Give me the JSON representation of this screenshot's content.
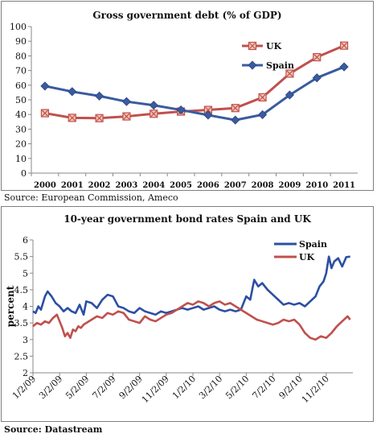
{
  "chart_data": [
    {
      "type": "line",
      "title": "Gross government debt (% of GDP)",
      "categories": [
        "2000",
        "2001",
        "2002",
        "2003",
        "2004",
        "2005",
        "2006",
        "2007",
        "2008",
        "2009",
        "2010",
        "2011"
      ],
      "ylim": [
        0,
        100
      ],
      "yticks": [
        "0",
        "10",
        "20",
        "30",
        "40",
        "50",
        "60",
        "70",
        "80",
        "90",
        "100"
      ],
      "grid": false,
      "legend": "top-right",
      "series": [
        {
          "name": "UK",
          "color": "#c0504d",
          "marker": "x-square",
          "values": [
            40.9,
            37.7,
            37.5,
            38.7,
            40.5,
            42.0,
            43.1,
            44.4,
            51.7,
            67.9,
            79.1,
            87.0
          ]
        },
        {
          "name": "Spain",
          "color": "#3a5ba0",
          "marker": "diamond",
          "values": [
            59.4,
            55.6,
            52.6,
            48.8,
            46.3,
            43.1,
            39.6,
            36.2,
            39.9,
            53.3,
            65.0,
            72.5
          ]
        }
      ]
    },
    {
      "type": "line",
      "title": "10-year government bond rates Spain and UK",
      "ylabel": "percent",
      "xticks": [
        "1/2/09",
        "3/2/09",
        "5/2/09",
        "7/2/09",
        "9/2/09",
        "11/2/09",
        "1/2/10",
        "3/2/10",
        "5/2/10",
        "7/2/10",
        "9/2/10",
        "11/2/10"
      ],
      "ylim": [
        2,
        6
      ],
      "yticks": [
        "2",
        "2.5",
        "3",
        "3.5",
        "4",
        "4.5",
        "5",
        "5.5",
        "6"
      ],
      "grid": false,
      "legend": "top-right",
      "series": [
        {
          "name": "Spain",
          "color": "#2c4fa3",
          "x": [
            0,
            0.1,
            0.2,
            0.3,
            0.45,
            0.55,
            0.7,
            0.85,
            1,
            1.15,
            1.3,
            1.45,
            1.6,
            1.75,
            1.9,
            2,
            2.2,
            2.4,
            2.6,
            2.8,
            3,
            3.2,
            3.4,
            3.6,
            3.8,
            4,
            4.2,
            4.4,
            4.6,
            4.8,
            5,
            5.2,
            5.4,
            5.6,
            5.8,
            6,
            6.2,
            6.4,
            6.6,
            6.8,
            7,
            7.2,
            7.4,
            7.6,
            7.8,
            8,
            8.15,
            8.3,
            8.45,
            8.6,
            8.8,
            9,
            9.2,
            9.4,
            9.6,
            9.8,
            10,
            10.2,
            10.4,
            10.6,
            10.75,
            10.9,
            11,
            11.1,
            11.2,
            11.3,
            11.45,
            11.6,
            11.75,
            11.9
          ],
          "values": [
            3.85,
            3.8,
            4.0,
            3.9,
            4.3,
            4.45,
            4.3,
            4.1,
            4.0,
            3.85,
            3.95,
            3.85,
            3.8,
            4.05,
            3.75,
            4.15,
            4.1,
            3.95,
            4.2,
            4.35,
            4.3,
            4.0,
            3.95,
            3.85,
            3.8,
            3.95,
            3.85,
            3.8,
            3.75,
            3.85,
            3.8,
            3.85,
            3.9,
            3.95,
            3.9,
            3.95,
            4.0,
            3.9,
            3.95,
            4.0,
            3.9,
            3.85,
            3.9,
            3.85,
            3.9,
            4.3,
            4.2,
            4.8,
            4.6,
            4.7,
            4.5,
            4.35,
            4.2,
            4.05,
            4.1,
            4.05,
            4.1,
            4.0,
            4.15,
            4.3,
            4.6,
            4.75,
            5.0,
            5.5,
            5.15,
            5.35,
            5.45,
            5.2,
            5.48,
            5.5
          ]
        },
        {
          "name": "UK",
          "color": "#c0504d",
          "x": [
            0,
            0.15,
            0.3,
            0.45,
            0.6,
            0.75,
            0.9,
            1,
            1.1,
            1.2,
            1.3,
            1.4,
            1.5,
            1.6,
            1.7,
            1.8,
            1.9,
            2,
            2.2,
            2.4,
            2.6,
            2.8,
            3,
            3.2,
            3.4,
            3.6,
            3.8,
            4,
            4.2,
            4.4,
            4.6,
            4.8,
            5,
            5.2,
            5.4,
            5.6,
            5.8,
            6,
            6.2,
            6.4,
            6.6,
            6.8,
            7,
            7.2,
            7.4,
            7.6,
            7.8,
            8,
            8.2,
            8.4,
            8.6,
            8.8,
            9,
            9.2,
            9.4,
            9.6,
            9.8,
            10,
            10.2,
            10.4,
            10.6,
            10.8,
            11,
            11.2,
            11.4,
            11.6,
            11.8,
            11.9
          ],
          "values": [
            3.4,
            3.5,
            3.45,
            3.55,
            3.5,
            3.65,
            3.75,
            3.55,
            3.35,
            3.1,
            3.2,
            3.05,
            3.3,
            3.25,
            3.4,
            3.35,
            3.45,
            3.5,
            3.6,
            3.7,
            3.65,
            3.8,
            3.75,
            3.85,
            3.8,
            3.6,
            3.55,
            3.5,
            3.7,
            3.6,
            3.55,
            3.65,
            3.75,
            3.8,
            3.9,
            4.0,
            4.1,
            4.05,
            4.15,
            4.1,
            4.0,
            4.1,
            4.15,
            4.05,
            4.1,
            4.0,
            3.9,
            3.8,
            3.7,
            3.6,
            3.55,
            3.5,
            3.45,
            3.5,
            3.6,
            3.55,
            3.6,
            3.45,
            3.2,
            3.05,
            3.0,
            3.1,
            3.05,
            3.2,
            3.4,
            3.55,
            3.7,
            3.6
          ]
        }
      ]
    }
  ],
  "sources": {
    "chart1": "Source: European Commission, Ameco",
    "chart2": "Source: Datastream"
  }
}
